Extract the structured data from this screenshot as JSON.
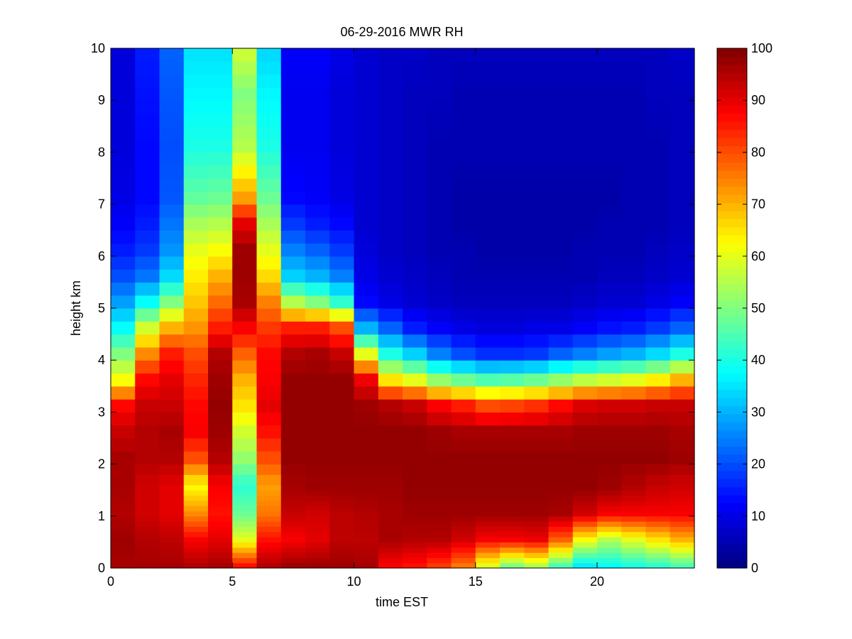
{
  "chart_data": {
    "type": "heatmap",
    "title": "06-29-2016 MWR RH",
    "xlabel": "time EST",
    "ylabel": "height km",
    "xlim": [
      0,
      24
    ],
    "ylim": [
      0,
      10
    ],
    "x_ticks": [
      0,
      5,
      10,
      15,
      20
    ],
    "y_ticks": [
      0,
      1,
      2,
      3,
      4,
      5,
      6,
      7,
      8,
      9,
      10
    ],
    "colorbar": {
      "min": 0,
      "max": 100,
      "colormap": "jet",
      "ticks": [
        0,
        10,
        20,
        30,
        40,
        50,
        60,
        70,
        80,
        90,
        100
      ]
    },
    "x": [
      0,
      1,
      2,
      3,
      4,
      5,
      6,
      7,
      8,
      9,
      10,
      11,
      12,
      13,
      14,
      15,
      16,
      17,
      18,
      19,
      20,
      21,
      22,
      23
    ],
    "y_levels_km": [
      0.0,
      0.1,
      0.2,
      0.3,
      0.4,
      0.5,
      0.6,
      0.7,
      0.8,
      0.9,
      1.0,
      1.1,
      1.2,
      1.3,
      1.4,
      1.5,
      1.6,
      1.8,
      2.0,
      2.25,
      2.5,
      2.75,
      3.0,
      3.25,
      3.5,
      3.75,
      4.0,
      4.25,
      4.5,
      4.75,
      5.0,
      5.25,
      5.5,
      5.75,
      6.0,
      6.25,
      6.5,
      6.75,
      7.0,
      7.25,
      7.5,
      7.75,
      8.0,
      8.25,
      8.5,
      8.75,
      9.0,
      9.25,
      9.5,
      9.75
    ],
    "profile_anchor_heights_km": [
      0,
      0.5,
      1,
      1.5,
      2,
      2.5,
      3,
      3.5,
      4,
      4.5,
      5,
      5.5,
      6,
      6.5,
      7,
      8,
      9,
      9.75
    ],
    "rh_profiles": [
      [
        96,
        97,
        95,
        96,
        96,
        93,
        87,
        62,
        50,
        38,
        28,
        20,
        15,
        12,
        10,
        9,
        9,
        9
      ],
      [
        96,
        95,
        92,
        92,
        95,
        95,
        93,
        87,
        74,
        58,
        38,
        24,
        18,
        15,
        13,
        13,
        14,
        15
      ],
      [
        96,
        94,
        90,
        90,
        95,
        96,
        93,
        90,
        85,
        70,
        50,
        34,
        27,
        24,
        21,
        20,
        21,
        22
      ],
      [
        95,
        88,
        74,
        63,
        80,
        88,
        87,
        84,
        80,
        73,
        68,
        64,
        60,
        54,
        47,
        40,
        37,
        35
      ],
      [
        96,
        90,
        86,
        88,
        95,
        97,
        98,
        97,
        95,
        85,
        77,
        70,
        62,
        55,
        48,
        40,
        37,
        35
      ],
      [
        86,
        60,
        48,
        42,
        52,
        58,
        65,
        70,
        78,
        88,
        96,
        97,
        97,
        90,
        72,
        55,
        50,
        57
      ],
      [
        95,
        86,
        76,
        72,
        80,
        86,
        90,
        88,
        87,
        82,
        75,
        66,
        60,
        54,
        48,
        40,
        37,
        34
      ],
      [
        97,
        88,
        93,
        96,
        98,
        98,
        98,
        98,
        95,
        85,
        55,
        33,
        25,
        18,
        13,
        11,
        11,
        12
      ],
      [
        97,
        90,
        92,
        97,
        98,
        98,
        98,
        98,
        96,
        85,
        50,
        30,
        22,
        15,
        12,
        11,
        11,
        12
      ],
      [
        97,
        94,
        94,
        97,
        98,
        98,
        98,
        98,
        93,
        80,
        42,
        25,
        18,
        13,
        10,
        9,
        9,
        10
      ],
      [
        96,
        94,
        95,
        97,
        98,
        98,
        97,
        89,
        60,
        30,
        13,
        10,
        9,
        8,
        8,
        8,
        8,
        8
      ],
      [
        88,
        96,
        96,
        97,
        98,
        98,
        95,
        65,
        40,
        22,
        10,
        8,
        7,
        7,
        7,
        7,
        7,
        7
      ],
      [
        86,
        95,
        97,
        98,
        98,
        98,
        93,
        60,
        33,
        15,
        8,
        7,
        6,
        6,
        6,
        6,
        6,
        7
      ],
      [
        82,
        95,
        97,
        98,
        98,
        97,
        88,
        52,
        25,
        12,
        7,
        6,
        5,
        5,
        5,
        5,
        6,
        6
      ],
      [
        76,
        92,
        97,
        98,
        98,
        96,
        85,
        48,
        20,
        10,
        6,
        5,
        5,
        4,
        4,
        5,
        5,
        6
      ],
      [
        60,
        88,
        97,
        98,
        98,
        96,
        80,
        45,
        17,
        9,
        6,
        5,
        4,
        4,
        4,
        5,
        5,
        6
      ],
      [
        50,
        88,
        97,
        98,
        98,
        96,
        81,
        46,
        17,
        9,
        6,
        5,
        4,
        4,
        4,
        5,
        5,
        6
      ],
      [
        55,
        89,
        97,
        98,
        98,
        96,
        83,
        48,
        18,
        10,
        6,
        5,
        4,
        4,
        4,
        5,
        5,
        6
      ],
      [
        45,
        78,
        96,
        98,
        98,
        96,
        87,
        52,
        22,
        10,
        6,
        5,
        4,
        4,
        4,
        5,
        5,
        6
      ],
      [
        36,
        62,
        92,
        98,
        98,
        97,
        91,
        56,
        25,
        12,
        7,
        5,
        5,
        4,
        4,
        5,
        5,
        6
      ],
      [
        38,
        55,
        88,
        97,
        98,
        97,
        92,
        58,
        28,
        14,
        8,
        6,
        5,
        5,
        4,
        5,
        5,
        6
      ],
      [
        40,
        60,
        88,
        95,
        98,
        97,
        92,
        60,
        30,
        15,
        8,
        6,
        5,
        5,
        5,
        5,
        5,
        6
      ],
      [
        42,
        65,
        88,
        93,
        98,
        97,
        93,
        64,
        34,
        18,
        10,
        7,
        6,
        5,
        5,
        5,
        6,
        6
      ],
      [
        45,
        70,
        88,
        92,
        97,
        96,
        93,
        70,
        40,
        22,
        12,
        8,
        7,
        6,
        6,
        6,
        6,
        7
      ]
    ]
  }
}
